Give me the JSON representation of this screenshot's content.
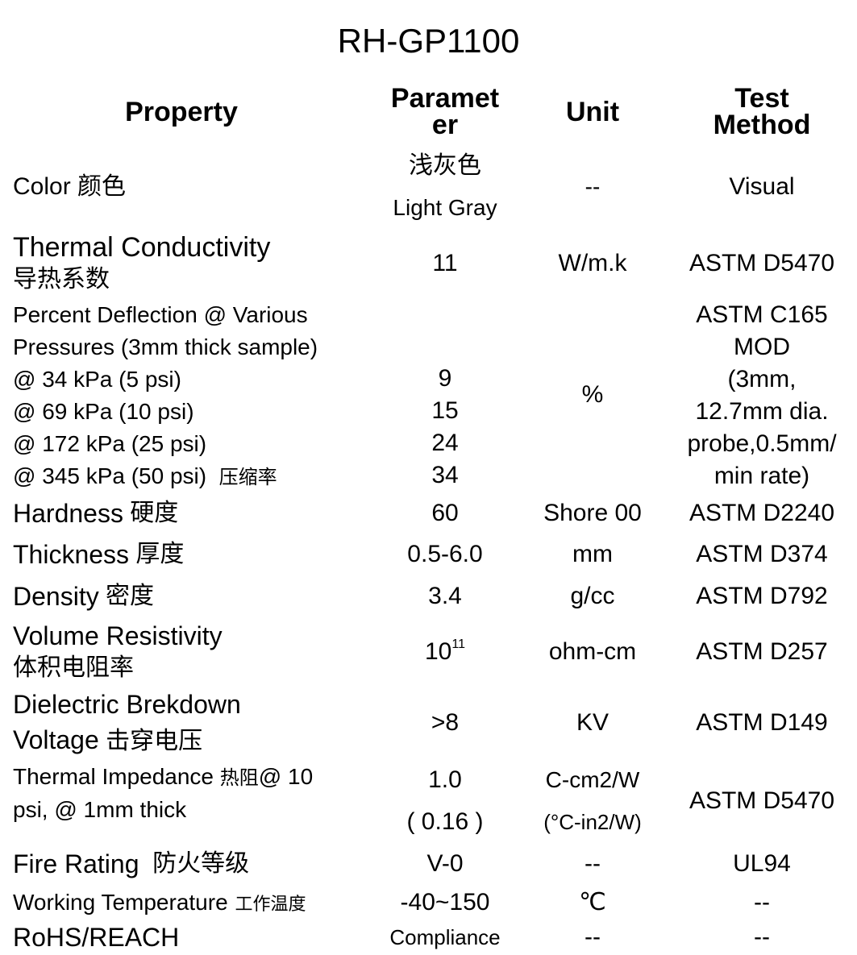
{
  "title": "RH-GP1100",
  "headers": {
    "property": "Property",
    "parameter_l1": "Paramet",
    "parameter_l2": "er",
    "unit": "Unit",
    "test_l1": "Test",
    "test_l2": "Method"
  },
  "rows": {
    "color": {
      "property_en": "Color",
      "property_zh": "颜色",
      "param_zh": "浅灰色",
      "param_en": "Light Gray",
      "unit": "--",
      "test": "Visual"
    },
    "thermal_conductivity": {
      "property_en": "Thermal Conductivity",
      "property_zh": "导热系数",
      "param": "11",
      "unit": "W/m.k",
      "test": "ASTM D5470"
    },
    "deflection": {
      "property_l1": "Percent Deflection @ Various",
      "property_l2": "Pressures (3mm thick sample)",
      "pressures": [
        "@ 34 kPa (5 psi)",
        "@ 69 kPa (10 psi)",
        "@ 172 kPa (25 psi)",
        "@ 345 kPa (50 psi)"
      ],
      "property_zh": "压缩率",
      "values": [
        "9",
        "15",
        "24",
        "34"
      ],
      "unit": "%",
      "test_lines": [
        "ASTM C165",
        "MOD",
        "(3mm,",
        "12.7mm dia.",
        "probe,0.5mm/",
        "min rate)"
      ]
    },
    "hardness": {
      "property_en": "Hardness",
      "property_zh": "硬度",
      "param": "60",
      "unit": "Shore 00",
      "test": "ASTM D2240"
    },
    "thickness": {
      "property_en": "Thickness",
      "property_zh": "厚度",
      "param": "0.5-6.0",
      "unit": "mm",
      "test": "ASTM D374"
    },
    "density": {
      "property_en": "Density",
      "property_zh": "密度",
      "param": "3.4",
      "unit": "g/cc",
      "test": "ASTM D792"
    },
    "volume_resistivity": {
      "property_en": "Volume Resistivity",
      "property_zh": "体积电阻率",
      "param_base": "10",
      "param_exp": "11",
      "unit": "ohm-cm",
      "test": "ASTM D257"
    },
    "dielectric": {
      "property_l1": "Dielectric Brekdown",
      "property_l2": "Voltage",
      "property_zh": "击穿电压",
      "param": ">8",
      "unit": "KV",
      "test": "ASTM D149"
    },
    "thermal_impedance": {
      "property_l1_en": "Thermal Impedance",
      "property_l1_zh": "热阻",
      "property_l1_end": "@ 10",
      "property_l2": "psi, @ 1mm thick",
      "param_l1": "1.0",
      "param_l2": "( 0.16 )",
      "unit_l1": "C-cm2/W",
      "unit_l2": "(°C-in2/W)",
      "test": "ASTM D5470"
    },
    "fire_rating": {
      "property_en": "Fire Rating",
      "property_zh": "防火等级",
      "param": "V-0",
      "unit": "--",
      "test": "UL94"
    },
    "working_temp": {
      "property_en": "Working Temperature",
      "property_zh": "工作温度",
      "param": "-40~150",
      "unit": "℃",
      "test": "--"
    },
    "rohs": {
      "property_en": "RoHS/REACH",
      "param": "Compliance",
      "unit": "--",
      "test": "--"
    }
  }
}
